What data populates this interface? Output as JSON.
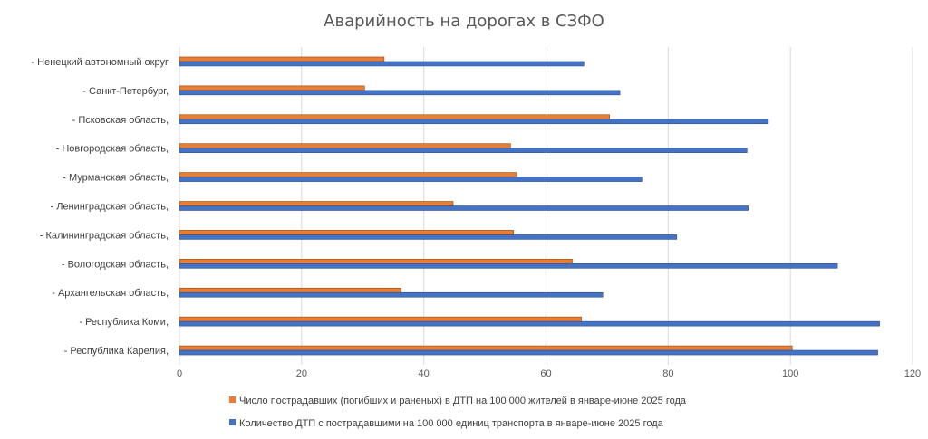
{
  "chart_data": {
    "type": "bar",
    "orientation": "horizontal",
    "title": "Аварийность на дорогах в СЗФО",
    "categories": [
      "- Республика Карелия,",
      "- Республика Коми,",
      "- Архангельская область,",
      "- Вологодская область,",
      "- Калининградская область,",
      "- Ленинградская область,",
      "- Мурманская область,",
      "- Новгородская область,",
      "- Псковская область,",
      "- Санкт-Петербург,",
      "- Ненецкий автономный округ"
    ],
    "series": [
      {
        "name": "Число пострадавших (погибших и раненых) в ДТП на 100 000 жителей в январе-июне 2025 года",
        "color": "#ED7D31",
        "values": [
          100.3,
          65.8,
          36.3,
          64.3,
          54.7,
          44.8,
          55.2,
          54.2,
          70.4,
          30.3,
          33.5
        ]
      },
      {
        "name": "Количество ДТП с пострадавшими на 100 000 единиц транспорта в январе-июне 2025 года",
        "color": "#4472C4",
        "values": [
          114.3,
          114.6,
          69.3,
          107.7,
          81.4,
          93.1,
          75.7,
          92.9,
          96.4,
          72.1,
          66.2
        ]
      }
    ],
    "xlim": [
      0,
      120
    ],
    "xticks": [
      "0",
      "20",
      "40",
      "60",
      "80",
      "100",
      "120"
    ],
    "grid": "vertical",
    "legend": "bottom"
  }
}
